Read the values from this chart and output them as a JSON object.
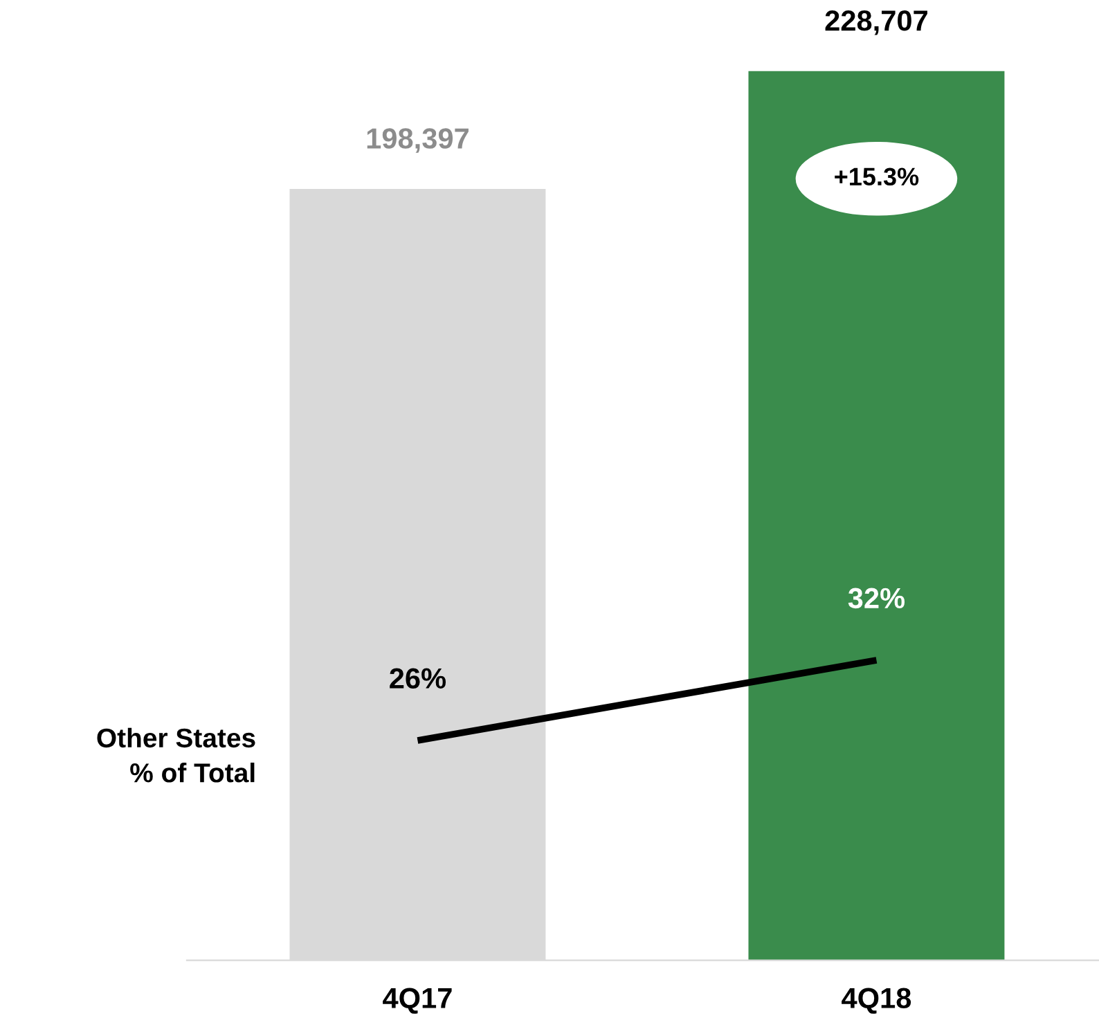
{
  "chart_data": {
    "type": "bar",
    "categories": [
      "4Q17",
      "4Q18"
    ],
    "series": [
      {
        "colors": [
          "#d9d9d9",
          "#3a8c4c"
        ],
        "values": [
          198397,
          228707
        ],
        "value_labels": [
          "198,397",
          "228,707"
        ]
      },
      {
        "type": "line",
        "name": "Other States\n% of Total",
        "color": "#000000",
        "axis": "y2",
        "values": [
          26,
          32
        ],
        "value_labels": [
          "26%",
          "32%"
        ]
      }
    ],
    "annotations": [
      "+15.3%"
    ],
    "legend": false,
    "grid": false,
    "marker": "none"
  }
}
